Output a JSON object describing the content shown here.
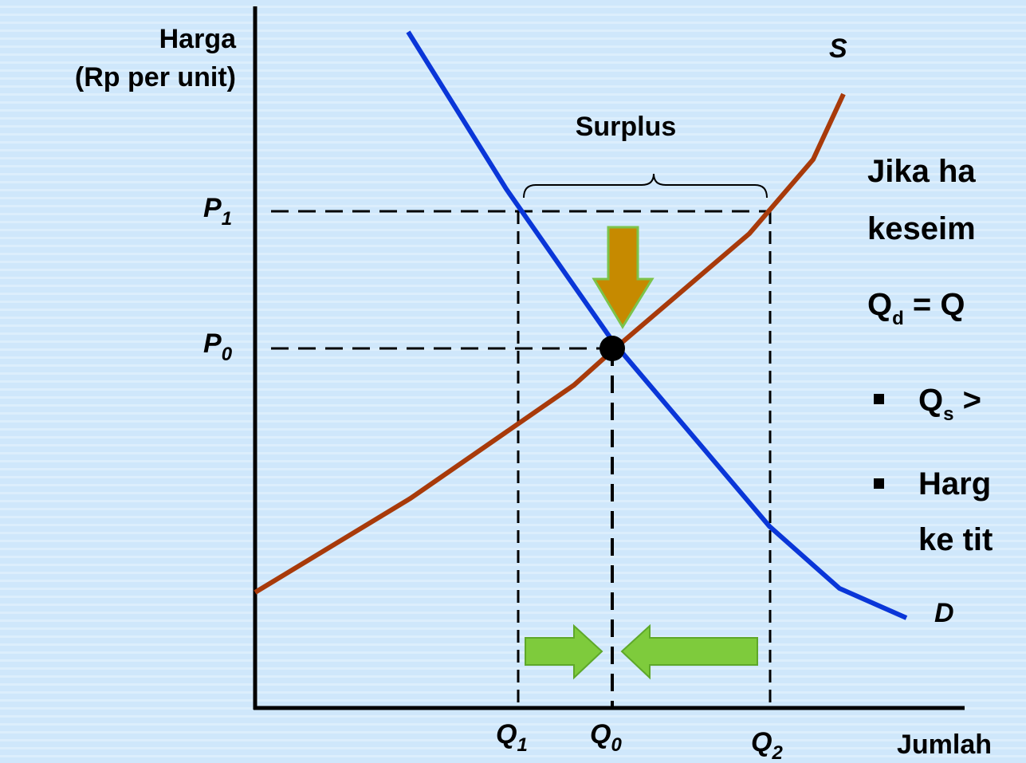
{
  "axis": {
    "y_label": [
      "Harga",
      "(Rp per unit)"
    ],
    "x_label": "Jumlah"
  },
  "curves": {
    "supply": "S",
    "demand": "D"
  },
  "surplus": "Surplus",
  "ticks": {
    "p1": {
      "base": "P",
      "sub": "1"
    },
    "p0": {
      "base": "P",
      "sub": "0"
    },
    "q1": {
      "base": "Q",
      "sub": "1"
    },
    "q0": {
      "base": "Q",
      "sub": "0"
    },
    "q2": {
      "base": "Q",
      "sub": "2"
    }
  },
  "note": {
    "line1": "Jika ha",
    "line2": "keseim",
    "equation": {
      "a": "Q",
      "a_sub": "d",
      "b": " = Q"
    },
    "bullet1": {
      "a": "Q",
      "a_sub": "s",
      "b": " >"
    },
    "bullet2": [
      "Harg",
      "ke tit"
    ]
  }
}
